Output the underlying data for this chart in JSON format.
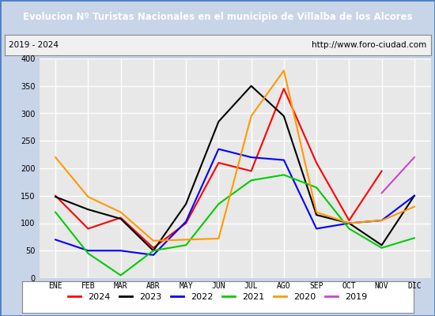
{
  "title": "Evolucion Nº Turistas Nacionales en el municipio de Villalba de los Alcores",
  "subtitle_left": "2019 - 2024",
  "subtitle_right": "http://www.foro-ciudad.com",
  "title_bg_color": "#4c7fc4",
  "title_text_color": "#ffffff",
  "months": [
    "ENE",
    "FEB",
    "MAR",
    "ABR",
    "MAY",
    "JUN",
    "JUL",
    "AGO",
    "SEP",
    "OCT",
    "NOV",
    "DIC"
  ],
  "ylim": [
    0,
    400
  ],
  "yticks": [
    0,
    50,
    100,
    150,
    200,
    250,
    300,
    350,
    400
  ],
  "series": {
    "2024": {
      "color": "#ff0000",
      "data": [
        150,
        90,
        110,
        55,
        100,
        210,
        195,
        345,
        210,
        105,
        195,
        null
      ]
    },
    "2023": {
      "color": "#000000",
      "data": [
        148,
        125,
        108,
        50,
        135,
        285,
        350,
        295,
        115,
        100,
        60,
        150
      ]
    },
    "2022": {
      "color": "#0000ff",
      "data": [
        70,
        50,
        50,
        42,
        103,
        235,
        220,
        215,
        90,
        100,
        105,
        150
      ]
    },
    "2021": {
      "color": "#00cc00",
      "data": [
        120,
        45,
        5,
        50,
        60,
        135,
        178,
        188,
        165,
        90,
        55,
        73
      ]
    },
    "2020": {
      "color": "#ff9900",
      "data": [
        220,
        148,
        120,
        68,
        70,
        72,
        295,
        378,
        120,
        100,
        105,
        130
      ]
    },
    "2019": {
      "color": "#cc44cc",
      "data": [
        null,
        null,
        null,
        null,
        null,
        null,
        null,
        null,
        null,
        null,
        155,
        220
      ]
    }
  },
  "legend_order": [
    "2024",
    "2023",
    "2022",
    "2021",
    "2020",
    "2019"
  ],
  "bg_plot_color": "#e8e8e8",
  "grid_color": "#ffffff",
  "fig_bg_color": "#c8d4e8",
  "subtitle_box_color": "#f0f0f0",
  "outer_border_color": "#4c7fc4"
}
